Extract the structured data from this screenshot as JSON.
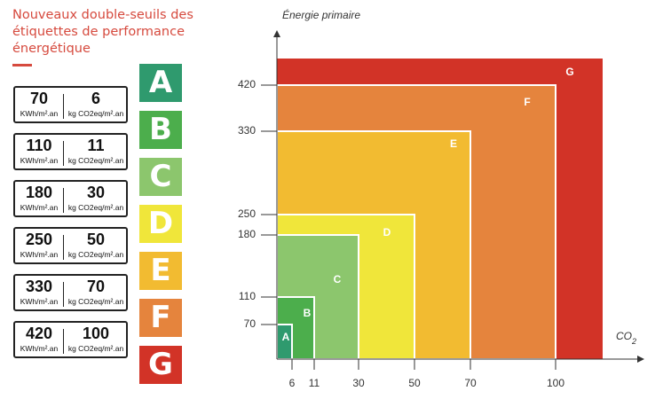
{
  "title": "Nouveaux double-seuils des étiquettes de performance énergétique",
  "thresholds": [
    {
      "energy": "70",
      "co2": "6",
      "energy_unit": "KWh/m².an",
      "co2_unit": "kg CO2eq/m².an"
    },
    {
      "energy": "110",
      "co2": "11",
      "energy_unit": "KWh/m².an",
      "co2_unit": "kg CO2eq/m².an"
    },
    {
      "energy": "180",
      "co2": "30",
      "energy_unit": "KWh/m².an",
      "co2_unit": "kg CO2eq/m².an"
    },
    {
      "energy": "250",
      "co2": "50",
      "energy_unit": "KWh/m².an",
      "co2_unit": "kg CO2eq/m².an"
    },
    {
      "energy": "330",
      "co2": "70",
      "energy_unit": "KWh/m².an",
      "co2_unit": "kg CO2eq/m².an"
    },
    {
      "energy": "420",
      "co2": "100",
      "energy_unit": "KWh/m².an",
      "co2_unit": "kg CO2eq/m².an"
    }
  ],
  "classes": [
    {
      "label": "A",
      "color": "#2f9a6e"
    },
    {
      "label": "B",
      "color": "#4cae4c"
    },
    {
      "label": "C",
      "color": "#8cc66d"
    },
    {
      "label": "D",
      "color": "#f0e63a"
    },
    {
      "label": "E",
      "color": "#f2bb31"
    },
    {
      "label": "F",
      "color": "#e5843d"
    },
    {
      "label": "G",
      "color": "#d23327"
    }
  ],
  "chart_data": {
    "type": "area",
    "ylabel": "Énergie primaire",
    "xlabel": "CO2",
    "x_ticks": [
      6,
      11,
      30,
      50,
      70,
      100
    ],
    "y_ticks": [
      70,
      110,
      180,
      250,
      330,
      420
    ],
    "regions": [
      {
        "label": "A",
        "co2_max": 6,
        "energy_max": 70
      },
      {
        "label": "B",
        "co2_max": 11,
        "energy_max": 110
      },
      {
        "label": "C",
        "co2_max": 30,
        "energy_max": 180
      },
      {
        "label": "D",
        "co2_max": 50,
        "energy_max": 250
      },
      {
        "label": "E",
        "co2_max": 70,
        "energy_max": 330
      },
      {
        "label": "F",
        "co2_max": 100,
        "energy_max": 420
      },
      {
        "label": "G"
      }
    ]
  }
}
